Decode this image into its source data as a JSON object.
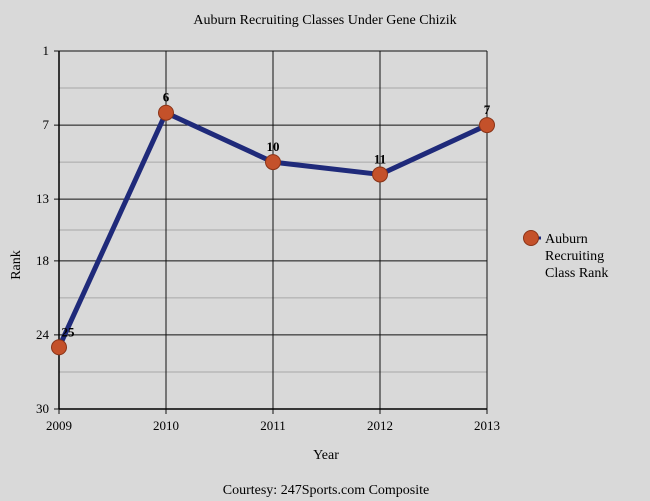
{
  "chart_data": {
    "type": "line",
    "title": "Auburn Recruiting Classes Under Gene Chizik",
    "xlabel": "Year",
    "ylabel": "Rank",
    "x": [
      2009,
      2010,
      2011,
      2012,
      2013
    ],
    "x_ticks": [
      "2009",
      "2010",
      "2011",
      "2012",
      "2013"
    ],
    "y_ticks": [
      "1",
      "7",
      "13",
      "18",
      "24",
      "30"
    ],
    "y_tick_values": [
      1,
      7,
      13,
      18,
      24,
      30
    ],
    "ylim": [
      30,
      1
    ],
    "y_inverted": true,
    "grid": true,
    "series": [
      {
        "name": "Auburn Recruiting Class Rank",
        "values": [
          25,
          6,
          10,
          11,
          7
        ],
        "data_labels": [
          "25",
          "6",
          "10",
          "11",
          "7"
        ],
        "line_color": "#1f2a7a",
        "marker_color": "#c4512a"
      }
    ],
    "legend_position": "right",
    "legend_lines": [
      "Auburn",
      "Recruiting",
      "Class Rank"
    ],
    "footer": "Courtesy: 247Sports.com Composite"
  },
  "colors": {
    "background": "#d9d9d9",
    "grid_major": "#111111",
    "grid_minor": "#a8a8a8"
  }
}
